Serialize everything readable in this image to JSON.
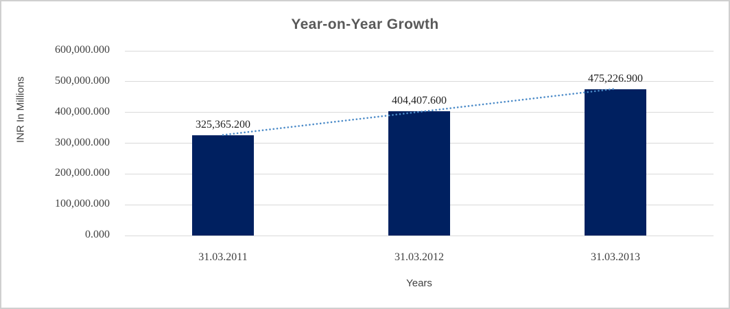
{
  "chart_data": {
    "type": "bar",
    "title": "Year-on-Year Growth",
    "categories": [
      "31.03.2011",
      "31.03.2012",
      "31.03.2013"
    ],
    "values": [
      325365.2,
      404407.6,
      475226.9
    ],
    "data_labels": [
      "325,365.200",
      "404,407.600",
      "475,226.900"
    ],
    "xlabel": "Years",
    "ylabel": "INR In Millions",
    "ylim": [
      0,
      600000
    ],
    "ytick_interval": 100000,
    "ytick_labels": [
      "0.000",
      "100,000.000",
      "200,000.000",
      "300,000.000",
      "400,000.000",
      "500,000.000",
      "600,000.000"
    ],
    "grid": true,
    "legend_position": "none",
    "trendline": {
      "type": "linear",
      "style": "dotted"
    }
  },
  "colors": {
    "bar": "#002060",
    "trendline": "#4c8bc8",
    "gridline": "#d9d9d9",
    "title_text": "#595959",
    "axis_text": "#3f3f3f",
    "frame_border": "#cfcfcf"
  }
}
